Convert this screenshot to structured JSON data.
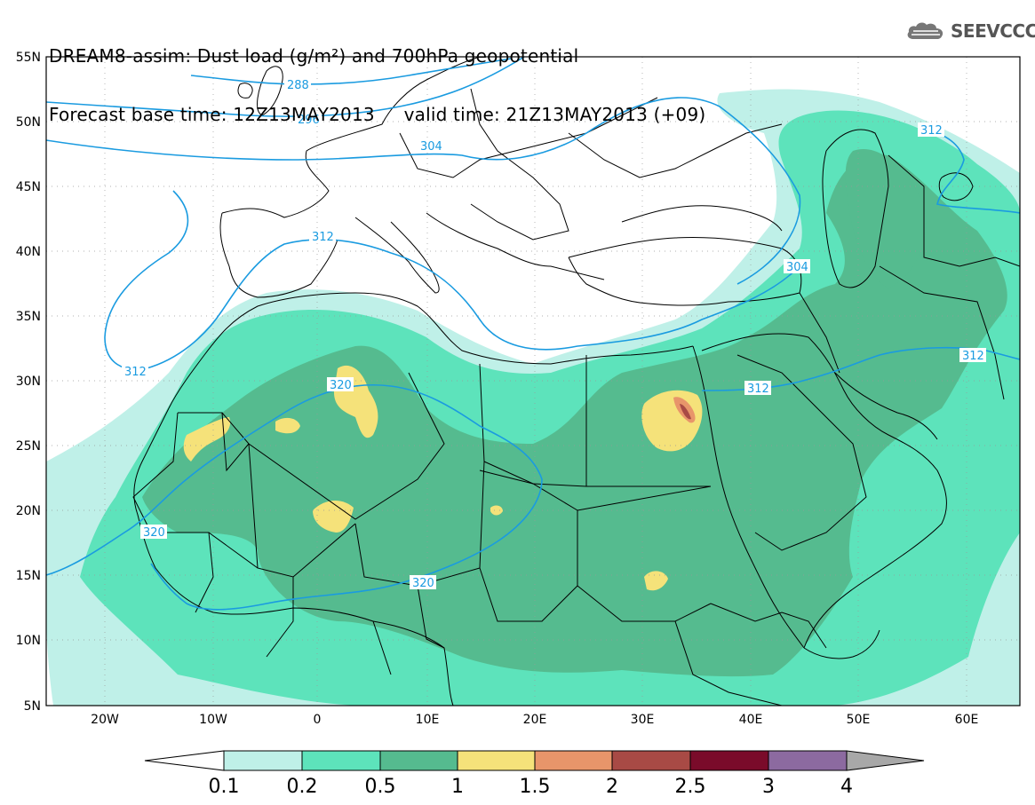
{
  "header": {
    "title_line1": "DREAM8-assim: Dust load (g/m²) and 700hPa geopotential",
    "title_line2": "Forecast base time: 12Z13MAY2013     valid time: 21Z13MAY2013 (+09)",
    "logo_text": "SEEVCCC",
    "logo_icon": "cloud-icon"
  },
  "map": {
    "lat_labels": [
      "55N",
      "50N",
      "45N",
      "40N",
      "35N",
      "30N",
      "25N",
      "20N",
      "15N",
      "10N",
      "5N"
    ],
    "lon_labels": [
      "20W",
      "10W",
      "0",
      "10E",
      "20E",
      "30E",
      "40E",
      "50E",
      "60E"
    ],
    "contour_labels": [
      "288",
      "296",
      "304",
      "304",
      "312",
      "312",
      "312",
      "312",
      "320",
      "320",
      "320"
    ]
  },
  "colorbar": {
    "levels": [
      "0.1",
      "0.2",
      "0.5",
      "1",
      "1.5",
      "2",
      "2.5",
      "3",
      "4"
    ],
    "colors": [
      "#bff0e8",
      "#5de3bb",
      "#55bb8f",
      "#f5e27a",
      "#e8956a",
      "#a84a45",
      "#7a0b2a",
      "#8c6aa0"
    ],
    "low_color": "#ffffff",
    "high_color": "#a8a8a8"
  },
  "colors": {
    "contour": "#1a9be0",
    "border": "#000000",
    "c01": "#bff0e8",
    "c02": "#5de3bb",
    "c05": "#55bb8f",
    "c1": "#f5e27a",
    "c15": "#e8956a",
    "c2": "#a84a45"
  }
}
